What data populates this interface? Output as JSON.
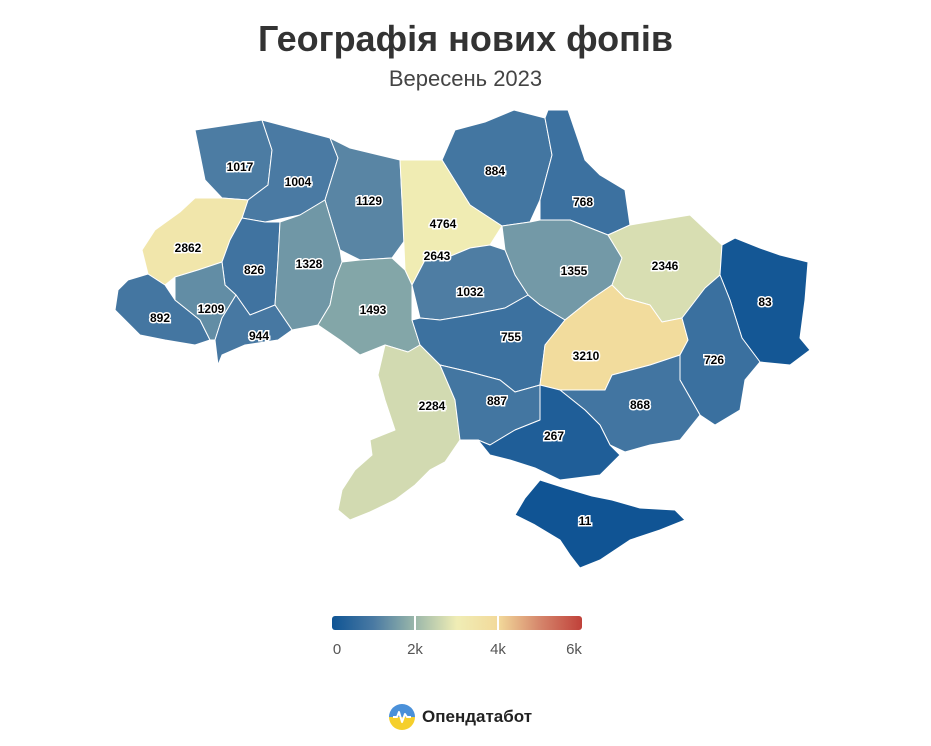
{
  "title": "Географія нових фопів",
  "subtitle": "Вересень 2023",
  "legend": {
    "min": 0,
    "max": 6000,
    "tick_labels": [
      "0",
      "2k",
      "4k",
      "6k"
    ],
    "colors": [
      "#0f5494",
      "#4a7aa3",
      "#9bb8aa",
      "#f0edb5",
      "#f2d99a",
      "#d5856b",
      "#c0413a"
    ]
  },
  "brand": {
    "name": "Опендатабот",
    "logo_icon": "opendatabot-logo-icon"
  },
  "chart_data": {
    "type": "choropleth",
    "title": "Географія нових фопів",
    "subtitle": "Вересень 2023",
    "color_range": [
      0,
      6000
    ],
    "regions": [
      {
        "value": 1017
      },
      {
        "value": 1004
      },
      {
        "value": 1129
      },
      {
        "value": 4764
      },
      {
        "value": 884
      },
      {
        "value": 768
      },
      {
        "value": 2862
      },
      {
        "value": 826
      },
      {
        "value": 1328
      },
      {
        "value": 2643
      },
      {
        "value": 1355
      },
      {
        "value": 2346
      },
      {
        "value": 83
      },
      {
        "value": 892
      },
      {
        "value": 1209
      },
      {
        "value": 944
      },
      {
        "value": 1493
      },
      {
        "value": 1032
      },
      {
        "value": 755
      },
      {
        "value": 3210
      },
      {
        "value": 726
      },
      {
        "value": 2284
      },
      {
        "value": 887
      },
      {
        "value": 868
      },
      {
        "value": 267
      },
      {
        "value": 11
      }
    ]
  }
}
